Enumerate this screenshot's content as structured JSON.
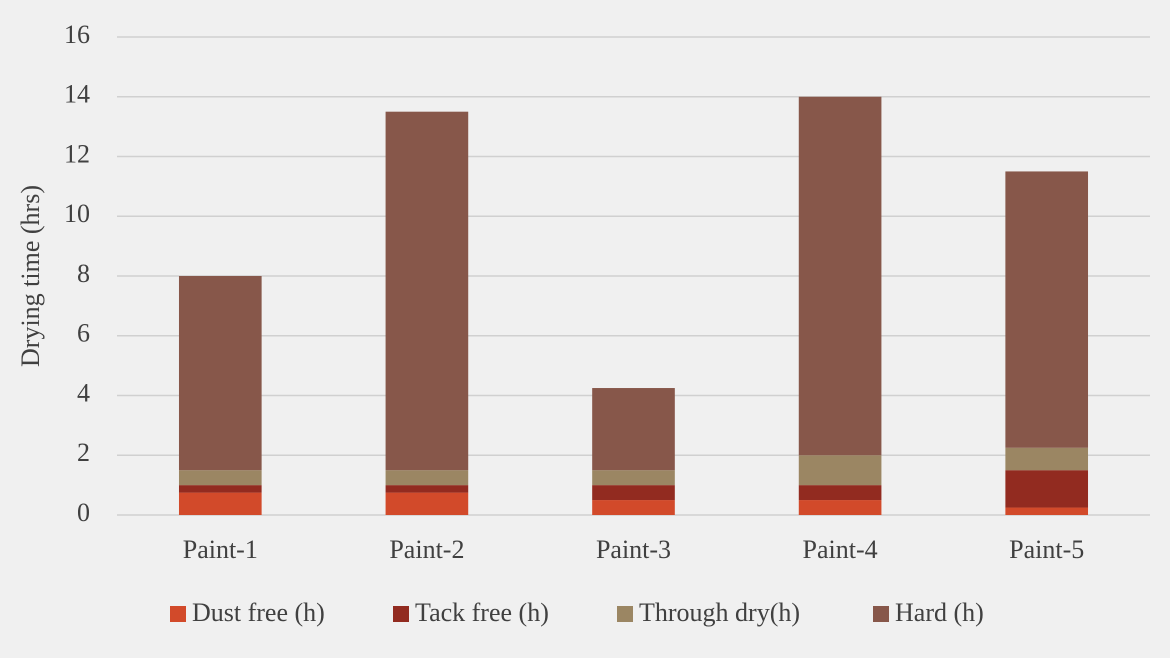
{
  "chart_data": {
    "type": "stacked-bar",
    "y_label": "Drying time  (hrs)",
    "categories": [
      "Paint-1",
      "Paint-2",
      "Paint-3",
      "Paint-4",
      "Paint-5"
    ],
    "series": [
      {
        "name": "Dust free (h)",
        "color": "#d24a2a",
        "values": [
          0.75,
          0.75,
          0.5,
          0.5,
          0.25
        ]
      },
      {
        "name": "Tack free (h)",
        "color": "#922b20",
        "values": [
          0.25,
          0.25,
          0.5,
          0.5,
          1.25
        ]
      },
      {
        "name": "Through dry(h)",
        "color": "#9b8663",
        "values": [
          0.5,
          0.5,
          0.5,
          1.0,
          0.75
        ]
      },
      {
        "name": "Hard (h)",
        "color": "#87574a",
        "values": [
          6.5,
          12,
          2.75,
          12,
          9.25
        ]
      }
    ],
    "ylim": [
      0,
      16
    ],
    "yticks": [
      0,
      2,
      4,
      6,
      8,
      10,
      12,
      14,
      16
    ],
    "grid": true,
    "legend": "bottom"
  }
}
